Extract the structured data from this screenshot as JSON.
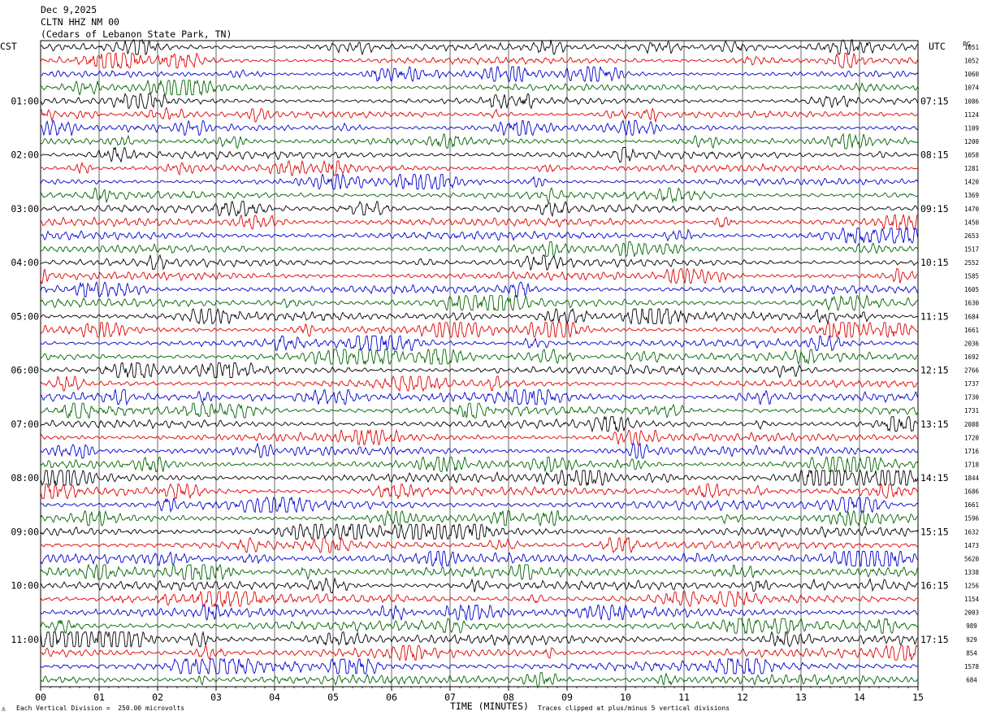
{
  "header": {
    "date": "Dec 9,2025",
    "station": "CLTN HHZ NM 00",
    "location": "(Cedars of Lebanon State Park, TN)"
  },
  "left_timezone": "CST",
  "right_timezone": "UTC",
  "right_header": "PG",
  "footer": {
    "scale_note": "Each Vertical Division =  250.00 microvolts",
    "xlabel": "TIME (MINUTES)",
    "clip_note": "Traces clipped at plus/minus 5 vertical divisions"
  },
  "chart_data": {
    "type": "line",
    "title": "",
    "xlabel": "TIME (MINUTES)",
    "ylabel": "",
    "xlim": [
      0,
      15
    ],
    "x_ticks": [
      "00",
      "01",
      "02",
      "03",
      "04",
      "05",
      "06",
      "07",
      "08",
      "09",
      "10",
      "11",
      "12",
      "13",
      "14",
      "15"
    ],
    "left_hour_labels": [
      "01:00",
      "02:00",
      "03:00",
      "04:00",
      "05:00",
      "06:00",
      "07:00",
      "08:00",
      "09:00",
      "10:00",
      "11:00"
    ],
    "right_hour_labels": [
      "07:15",
      "08:15",
      "09:15",
      "10:15",
      "11:15",
      "12:15",
      "13:15",
      "14:15",
      "15:15",
      "16:15",
      "17:15"
    ],
    "trace_count": 48,
    "trace_colors": [
      "#000000",
      "#e00000",
      "#0000d0",
      "#006400"
    ],
    "trace_rms_values": [
      "1051",
      "1052",
      "1060",
      "1074",
      "1086",
      "1124",
      "1109",
      "1200",
      "1058",
      "1281",
      "1420",
      "1369",
      "1470",
      "1450",
      "2653",
      "1517",
      "2552",
      "1585",
      "1605",
      "1630",
      "1684",
      "1661",
      "2036",
      "1692",
      "2766",
      "1737",
      "1730",
      "1731",
      "2088",
      "1720",
      "1716",
      "1718",
      "1844",
      "1686",
      "1661",
      "1596",
      "1632",
      "1473",
      "5620",
      "1338",
      "1256",
      "1154",
      "2003",
      "989",
      "929",
      "854",
      "1578",
      "684"
    ],
    "grid": true
  }
}
